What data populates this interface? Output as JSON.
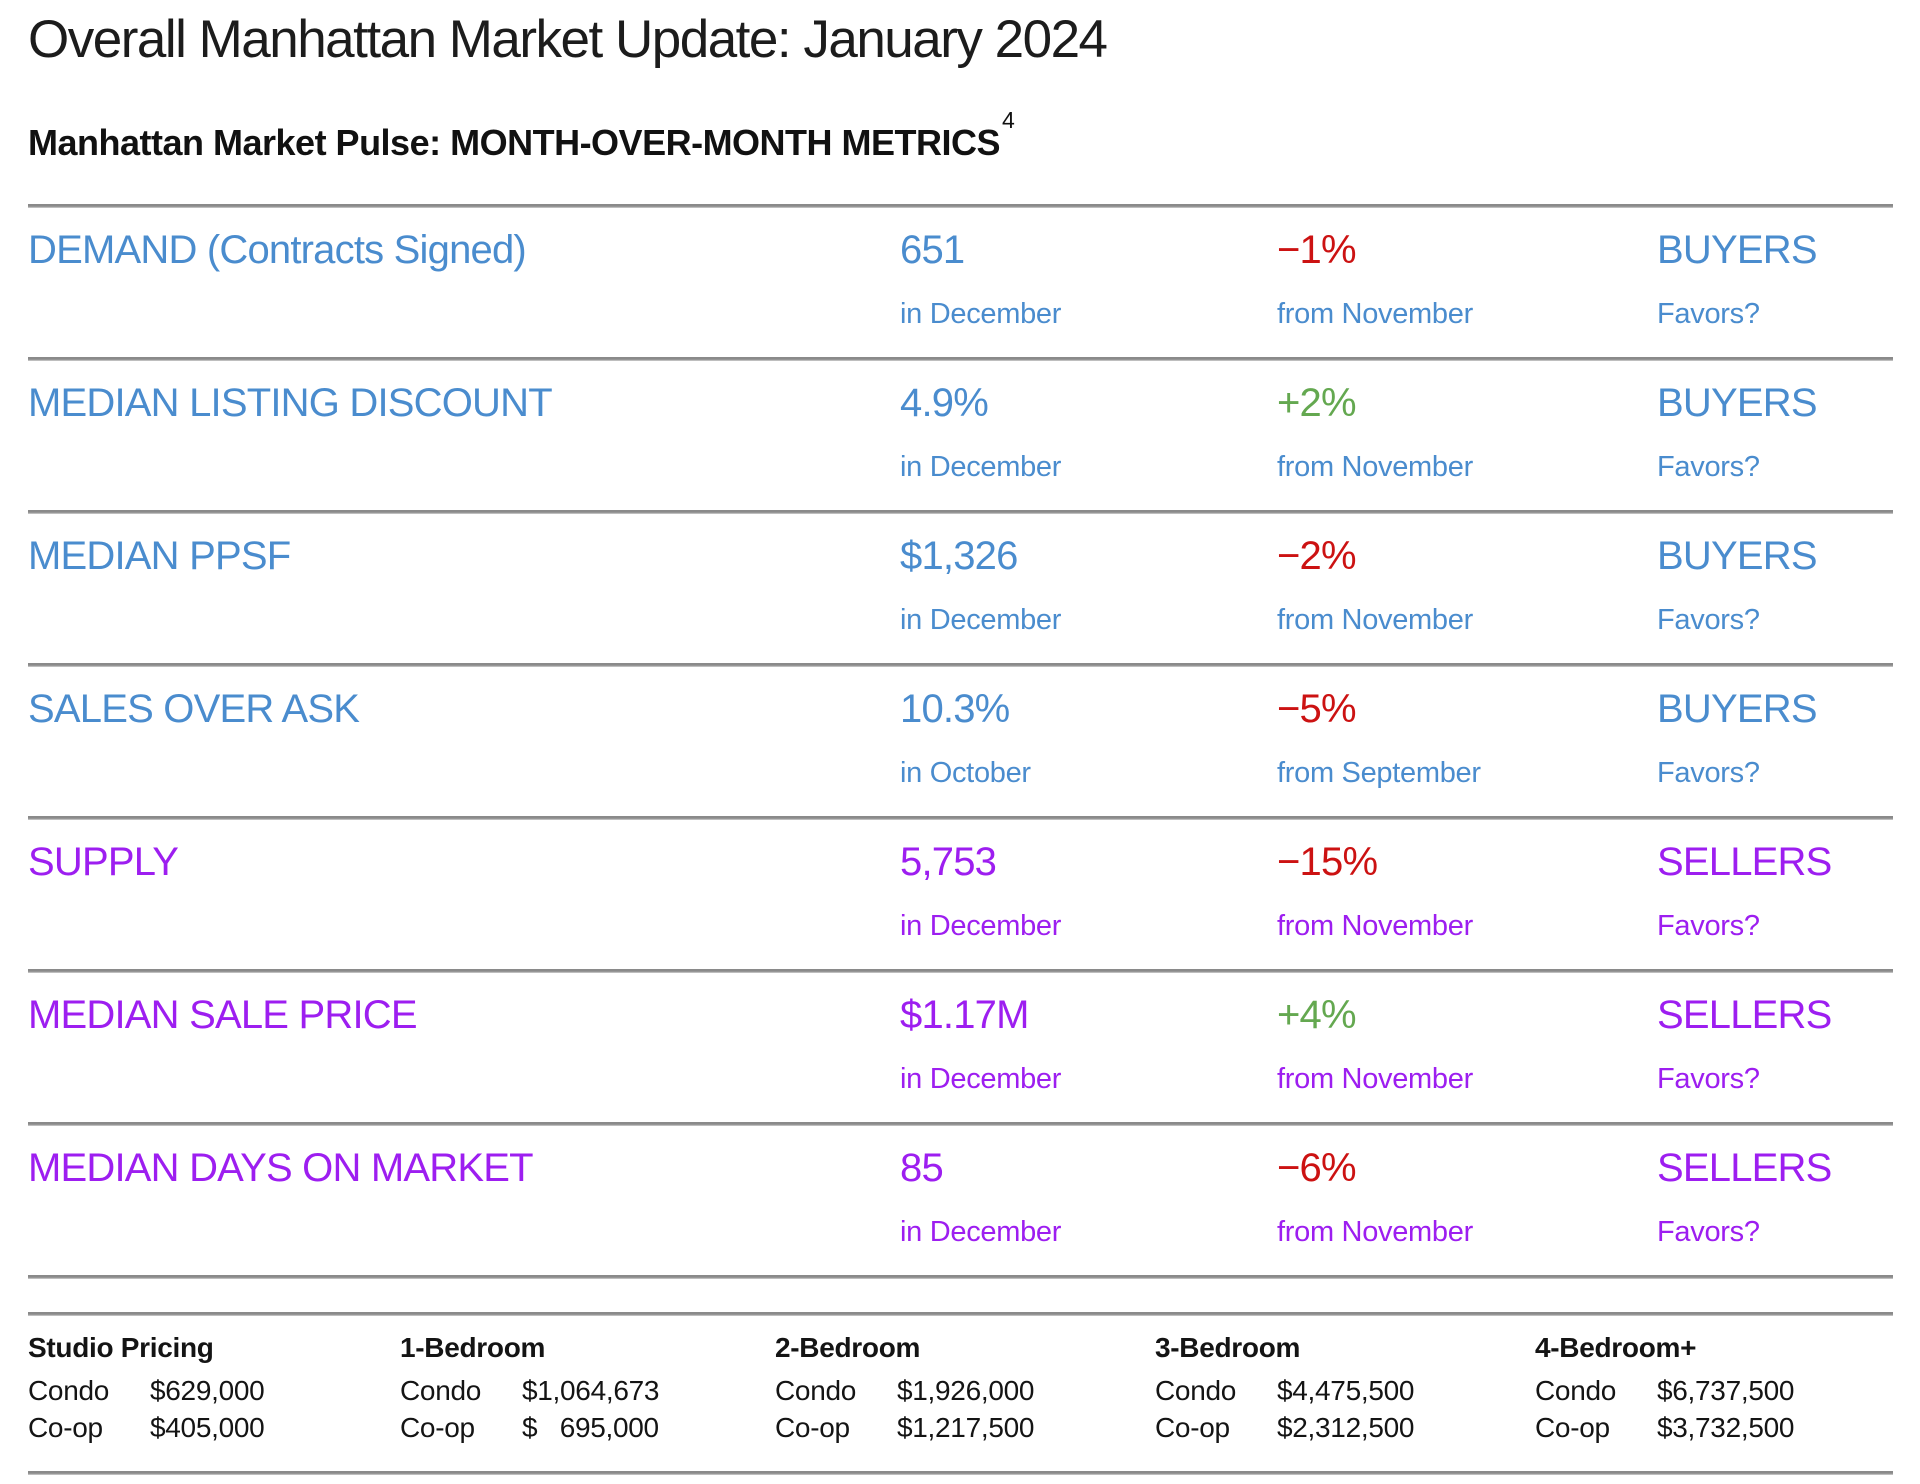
{
  "page": {
    "title": "Overall Manhattan Market Update: January 2024",
    "subtitle": "Manhattan Market Pulse: MONTH-OVER-MONTH METRICS",
    "subtitle_footnote": "4"
  },
  "colors": {
    "buyers_blue": "#4a8cce",
    "sellers_purple": "#9d1ef0",
    "negative_red": "#cc1212",
    "positive_green": "#64a850",
    "divider_gray": "#8a8a8a",
    "body_text": "#111111"
  },
  "metrics": [
    {
      "label": "DEMAND (Contracts Signed)",
      "value": "651",
      "period": "in December",
      "change": "−1%",
      "change_color": "#cc1212",
      "compare": "from November",
      "favors": "BUYERS",
      "favors_label": "Favors?",
      "accent": "#4a8cce"
    },
    {
      "label": "MEDIAN LISTING DISCOUNT",
      "value": "4.9%",
      "period": "in December",
      "change": "+2%",
      "change_color": "#64a850",
      "compare": "from November",
      "favors": "BUYERS",
      "favors_label": "Favors?",
      "accent": "#4a8cce"
    },
    {
      "label": "MEDIAN PPSF",
      "value": "$1,326",
      "period": "in December",
      "change": "−2%",
      "change_color": "#cc1212",
      "compare": "from November",
      "favors": "BUYERS",
      "favors_label": "Favors?",
      "accent": "#4a8cce"
    },
    {
      "label": "SALES OVER ASK",
      "value": "10.3%",
      "period": "in October",
      "change": "−5%",
      "change_color": "#cc1212",
      "compare": "from September",
      "favors": "BUYERS",
      "favors_label": "Favors?",
      "accent": "#4a8cce"
    },
    {
      "label": "SUPPLY",
      "value": "5,753",
      "period": "in December",
      "change": "−15%",
      "change_color": "#cc1212",
      "compare": "from November",
      "favors": "SELLERS",
      "favors_label": "Favors?",
      "accent": "#9d1ef0"
    },
    {
      "label": "MEDIAN SALE PRICE",
      "value": "$1.17M",
      "period": "in December",
      "change": "+4%",
      "change_color": "#64a850",
      "compare": "from November",
      "favors": "SELLERS",
      "favors_label": "Favors?",
      "accent": "#9d1ef0"
    },
    {
      "label": "MEDIAN DAYS ON MARKET",
      "value": "85",
      "period": "in December",
      "change": "−6%",
      "change_color": "#cc1212",
      "compare": "from November",
      "favors": "SELLERS",
      "favors_label": "Favors?",
      "accent": "#9d1ef0"
    }
  ],
  "pricing": {
    "columns": [
      {
        "header": "Studio Pricing",
        "rows": [
          {
            "label": "Condo",
            "value": "$629,000"
          },
          {
            "label": "Co-op",
            "value": "$405,000"
          }
        ]
      },
      {
        "header": "1-Bedroom",
        "rows": [
          {
            "label": "Condo",
            "value": "$1,064,673"
          },
          {
            "label": "Co-op",
            "value": "$   695,000"
          }
        ]
      },
      {
        "header": "2-Bedroom",
        "rows": [
          {
            "label": "Condo",
            "value": "$1,926,000"
          },
          {
            "label": "Co-op",
            "value": "$1,217,500"
          }
        ]
      },
      {
        "header": "3-Bedroom",
        "rows": [
          {
            "label": "Condo",
            "value": "$4,475,500"
          },
          {
            "label": "Co-op",
            "value": "$2,312,500"
          }
        ]
      },
      {
        "header": "4-Bedroom+",
        "rows": [
          {
            "label": "Condo",
            "value": "$6,737,500"
          },
          {
            "label": "Co-op",
            "value": "$3,732,500"
          }
        ]
      }
    ]
  }
}
